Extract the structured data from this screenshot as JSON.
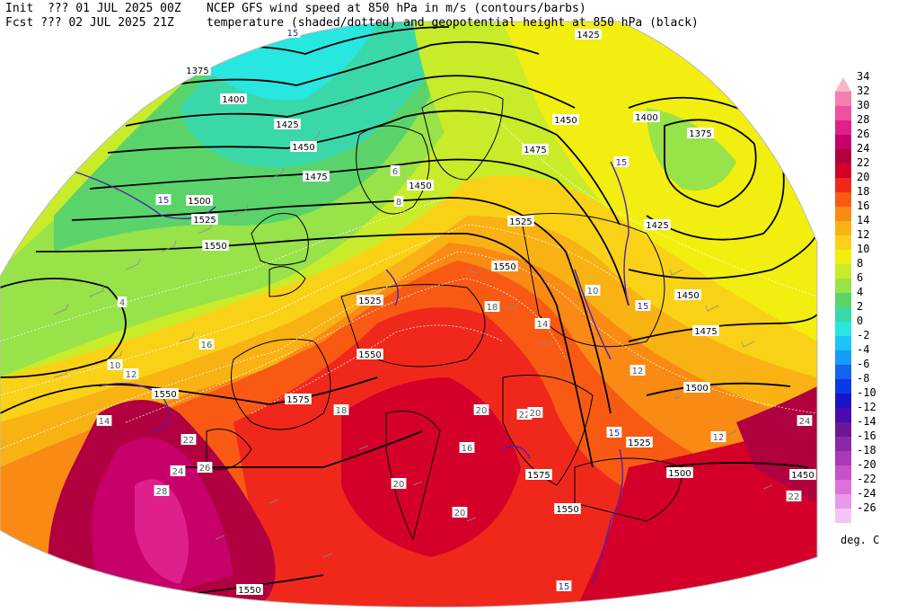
{
  "header": {
    "init_line": "Init  ??? 01 JUL 2025 00Z",
    "fcst_line": "Fcst ??? 02 JUL 2025 21Z",
    "title_line1": "NCEP GFS wind speed at 850 hPa in m/s (contours/barbs)",
    "title_line2": "temperature (shaded/dotted) and geopotential height at 850 hPa (black)"
  },
  "colorbar": {
    "units": "deg. C",
    "levels": [
      {
        "label": "34",
        "color": "#f7b7c8"
      },
      {
        "label": "32",
        "color": "#f47fb0"
      },
      {
        "label": "30",
        "color": "#ef4fa0"
      },
      {
        "label": "28",
        "color": "#e0208a"
      },
      {
        "label": "26",
        "color": "#c8006a"
      },
      {
        "label": "24",
        "color": "#b00040"
      },
      {
        "label": "22",
        "color": "#d4002a"
      },
      {
        "label": "20",
        "color": "#f0281c"
      },
      {
        "label": "18",
        "color": "#f85a14"
      },
      {
        "label": "16",
        "color": "#f98a14"
      },
      {
        "label": "14",
        "color": "#f9b214"
      },
      {
        "label": "12",
        "color": "#f9d218"
      },
      {
        "label": "10",
        "color": "#f2ee10"
      },
      {
        "label": "8",
        "color": "#c8ec2a"
      },
      {
        "label": "6",
        "color": "#98e24a"
      },
      {
        "label": "4",
        "color": "#5ad46a"
      },
      {
        "label": "2",
        "color": "#3ad8a8"
      },
      {
        "label": "0",
        "color": "#28e6e0"
      },
      {
        "label": "-2",
        "color": "#1ac4f8"
      },
      {
        "label": "-4",
        "color": "#189af8"
      },
      {
        "label": "-6",
        "color": "#1464f0"
      },
      {
        "label": "-8",
        "color": "#0a3ae8"
      },
      {
        "label": "-10",
        "color": "#1a14c8"
      },
      {
        "label": "-12",
        "color": "#4a0ab0"
      },
      {
        "label": "-14",
        "color": "#6a1898"
      },
      {
        "label": "-16",
        "color": "#8a28a8"
      },
      {
        "label": "-18",
        "color": "#aa38b8"
      },
      {
        "label": "-20",
        "color": "#c850c8"
      },
      {
        "label": "-22",
        "color": "#dc70dc"
      },
      {
        "label": "-24",
        "color": "#ea98ea"
      },
      {
        "label": "-26",
        "color": "#f4c4f4"
      }
    ]
  },
  "map": {
    "height_labels": [
      {
        "text": "1375"
      },
      {
        "text": "1400"
      },
      {
        "text": "1425"
      },
      {
        "text": "1450"
      },
      {
        "text": "1475"
      },
      {
        "text": "1500"
      },
      {
        "text": "1525"
      },
      {
        "text": "1550"
      },
      {
        "text": "1450"
      },
      {
        "text": "1475"
      },
      {
        "text": "1525"
      },
      {
        "text": "1550"
      },
      {
        "text": "1525"
      },
      {
        "text": "1550"
      },
      {
        "text": "1575"
      },
      {
        "text": "1575"
      },
      {
        "text": "1550"
      },
      {
        "text": "1450"
      },
      {
        "text": "1400"
      },
      {
        "text": "1375"
      },
      {
        "text": "1425"
      },
      {
        "text": "1450"
      },
      {
        "text": "1475"
      },
      {
        "text": "1500"
      },
      {
        "text": "1525"
      },
      {
        "text": "1500"
      },
      {
        "text": "1550"
      },
      {
        "text": "1450"
      },
      {
        "text": "1425"
      },
      {
        "text": "1550"
      }
    ],
    "temp_labels": [
      {
        "text": "6"
      },
      {
        "text": "8"
      },
      {
        "text": "4"
      },
      {
        "text": "10"
      },
      {
        "text": "12"
      },
      {
        "text": "14"
      },
      {
        "text": "16"
      },
      {
        "text": "18"
      },
      {
        "text": "20"
      },
      {
        "text": "22"
      },
      {
        "text": "24"
      },
      {
        "text": "26"
      },
      {
        "text": "28"
      },
      {
        "text": "20"
      },
      {
        "text": "16"
      },
      {
        "text": "14"
      },
      {
        "text": "12"
      },
      {
        "text": "10"
      },
      {
        "text": "22"
      },
      {
        "text": "20"
      },
      {
        "text": "18"
      },
      {
        "text": "12"
      },
      {
        "text": "20"
      },
      {
        "text": "24"
      },
      {
        "text": "22"
      }
    ],
    "wind_labels": [
      {
        "text": "15"
      },
      {
        "text": "15"
      },
      {
        "text": "15"
      },
      {
        "text": "15"
      },
      {
        "text": "15"
      },
      {
        "text": "15"
      }
    ]
  }
}
